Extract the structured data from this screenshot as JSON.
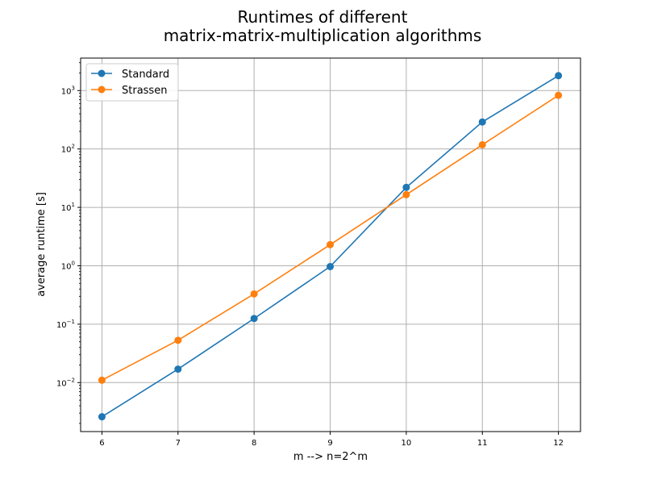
{
  "chart_data": {
    "type": "line",
    "title_lines": [
      "Runtimes of different",
      "matrix-matrix-multiplication algorithms"
    ],
    "xlabel": "m --> n=2^m",
    "ylabel": "average runtime [s]",
    "x": [
      6,
      7,
      8,
      9,
      10,
      11,
      12
    ],
    "x_tick_labels": [
      "6",
      "7",
      "8",
      "9",
      "10",
      "11",
      "12"
    ],
    "xlim": [
      5.72,
      12.29
    ],
    "y_scale": "log",
    "ylim": [
      0.00145,
      3600
    ],
    "y_ticks": [
      {
        "value": 0.01,
        "base": "10",
        "exp": "−2"
      },
      {
        "value": 0.1,
        "base": "10",
        "exp": "−1"
      },
      {
        "value": 1,
        "base": "10",
        "exp": "0"
      },
      {
        "value": 10,
        "base": "10",
        "exp": "1"
      },
      {
        "value": 100,
        "base": "10",
        "exp": "2"
      },
      {
        "value": 1000,
        "base": "10",
        "exp": "3"
      }
    ],
    "grid": true,
    "legend_position": "top-left",
    "series": [
      {
        "name": "Standard",
        "color": "#1f77b4",
        "marker": "circle",
        "values": [
          0.0026,
          0.017,
          0.125,
          0.97,
          22,
          290,
          1800
        ]
      },
      {
        "name": "Strassen",
        "color": "#ff7f0e",
        "marker": "circle",
        "values": [
          0.011,
          0.053,
          0.33,
          2.3,
          16.5,
          118,
          830
        ]
      }
    ]
  }
}
